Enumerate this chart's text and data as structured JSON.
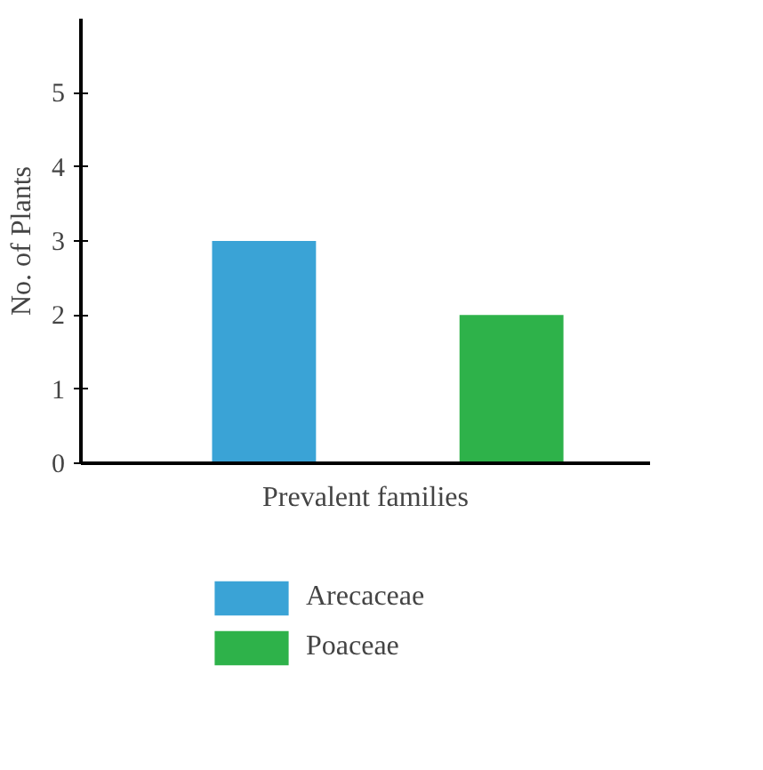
{
  "chart_data": {
    "type": "bar",
    "xlabel": "Prevalent families",
    "ylabel": "No. of Plants",
    "categories": [
      null,
      null
    ],
    "series": [
      {
        "name": "Arecaceae",
        "color": "#3aa3d6",
        "values": [
          3,
          null
        ]
      },
      {
        "name": "Poaceae",
        "color": "#2eb24a",
        "values": [
          null,
          2
        ]
      }
    ],
    "ylim": [
      0,
      6
    ],
    "yticks": [
      0,
      1,
      2,
      3,
      4,
      5
    ],
    "grid": false,
    "legend": "bottom"
  }
}
